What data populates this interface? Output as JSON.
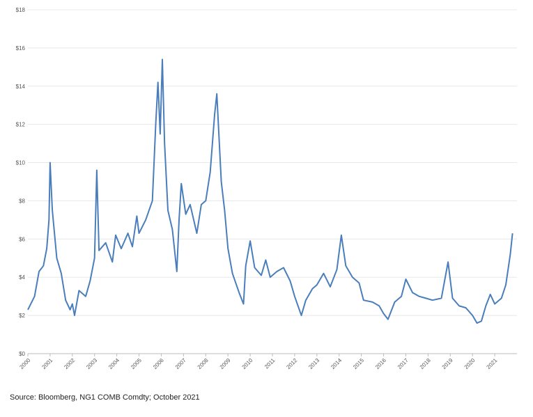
{
  "chart_data": {
    "type": "line",
    "source": "Source: Bloomberg, NG1 COMB Comdty; October 2021",
    "x": [
      2000.0,
      2000.3,
      2000.5,
      2000.7,
      2000.85,
      2000.95,
      2001.0,
      2001.1,
      2001.3,
      2001.5,
      2001.7,
      2001.9,
      2002.0,
      2002.1,
      2002.3,
      2002.6,
      2002.8,
      2003.0,
      2003.1,
      2003.2,
      2003.5,
      2003.8,
      2003.95,
      2004.2,
      2004.5,
      2004.7,
      2004.9,
      2005.0,
      2005.3,
      2005.6,
      2005.75,
      2005.85,
      2005.95,
      2006.05,
      2006.15,
      2006.3,
      2006.5,
      2006.7,
      2006.8,
      2006.9,
      2007.1,
      2007.3,
      2007.6,
      2007.8,
      2008.0,
      2008.2,
      2008.4,
      2008.5,
      2008.7,
      2008.85,
      2009.0,
      2009.2,
      2009.5,
      2009.7,
      2009.8,
      2010.0,
      2010.2,
      2010.5,
      2010.7,
      2010.9,
      2011.2,
      2011.5,
      2011.8,
      2012.0,
      2012.3,
      2012.5,
      2012.8,
      2013.0,
      2013.3,
      2013.6,
      2013.9,
      2014.1,
      2014.3,
      2014.6,
      2014.9,
      2015.1,
      2015.5,
      2015.8,
      2016.0,
      2016.2,
      2016.5,
      2016.8,
      2017.0,
      2017.3,
      2017.6,
      2017.9,
      2018.2,
      2018.6,
      2018.9,
      2019.1,
      2019.4,
      2019.7,
      2020.0,
      2020.2,
      2020.4,
      2020.6,
      2020.8,
      2021.0,
      2021.3,
      2021.5,
      2021.7,
      2021.8
    ],
    "series": [
      {
        "color": "#4a7ebb",
        "values": [
          2.3,
          3.0,
          4.3,
          4.6,
          5.5,
          7.0,
          10.0,
          7.5,
          5.0,
          4.2,
          2.8,
          2.3,
          2.6,
          2.0,
          3.3,
          3.0,
          3.8,
          5.0,
          9.6,
          5.4,
          5.8,
          4.8,
          6.2,
          5.5,
          6.3,
          5.6,
          7.2,
          6.3,
          7.0,
          8.0,
          12.0,
          14.2,
          11.5,
          15.4,
          11.0,
          7.5,
          6.5,
          4.3,
          7.0,
          8.9,
          7.3,
          7.8,
          6.3,
          7.8,
          8.0,
          9.5,
          12.5,
          13.6,
          9.0,
          7.5,
          5.5,
          4.2,
          3.2,
          2.6,
          4.6,
          5.9,
          4.5,
          4.1,
          4.9,
          4.0,
          4.3,
          4.5,
          3.8,
          3.0,
          2.0,
          2.8,
          3.4,
          3.6,
          4.2,
          3.5,
          4.4,
          6.2,
          4.6,
          4.0,
          3.7,
          2.8,
          2.7,
          2.5,
          2.1,
          1.8,
          2.7,
          3.0,
          3.9,
          3.2,
          3.0,
          2.9,
          2.8,
          2.9,
          4.8,
          2.9,
          2.5,
          2.4,
          2.0,
          1.6,
          1.7,
          2.5,
          3.1,
          2.6,
          2.9,
          3.6,
          5.2,
          6.3
        ]
      }
    ],
    "xlim": [
      2000,
      2022
    ],
    "xticks": [
      2000,
      2001,
      2002,
      2003,
      2004,
      2005,
      2006,
      2007,
      2008,
      2009,
      2010,
      2011,
      2012,
      2013,
      2014,
      2015,
      2016,
      2017,
      2018,
      2019,
      2020,
      2021
    ],
    "ylim": [
      0,
      18
    ],
    "yticks": [
      {
        "value": 0,
        "label": "$0"
      },
      {
        "value": 2,
        "label": "$2"
      },
      {
        "value": 4,
        "label": "$4"
      },
      {
        "value": 6,
        "label": "$6"
      },
      {
        "value": 8,
        "label": "$8"
      },
      {
        "value": 10,
        "label": "$10"
      },
      {
        "value": 12,
        "label": "$12"
      },
      {
        "value": 14,
        "label": "$14"
      },
      {
        "value": 16,
        "label": "$16"
      },
      {
        "value": 18,
        "label": "$18"
      }
    ],
    "grid": true
  }
}
